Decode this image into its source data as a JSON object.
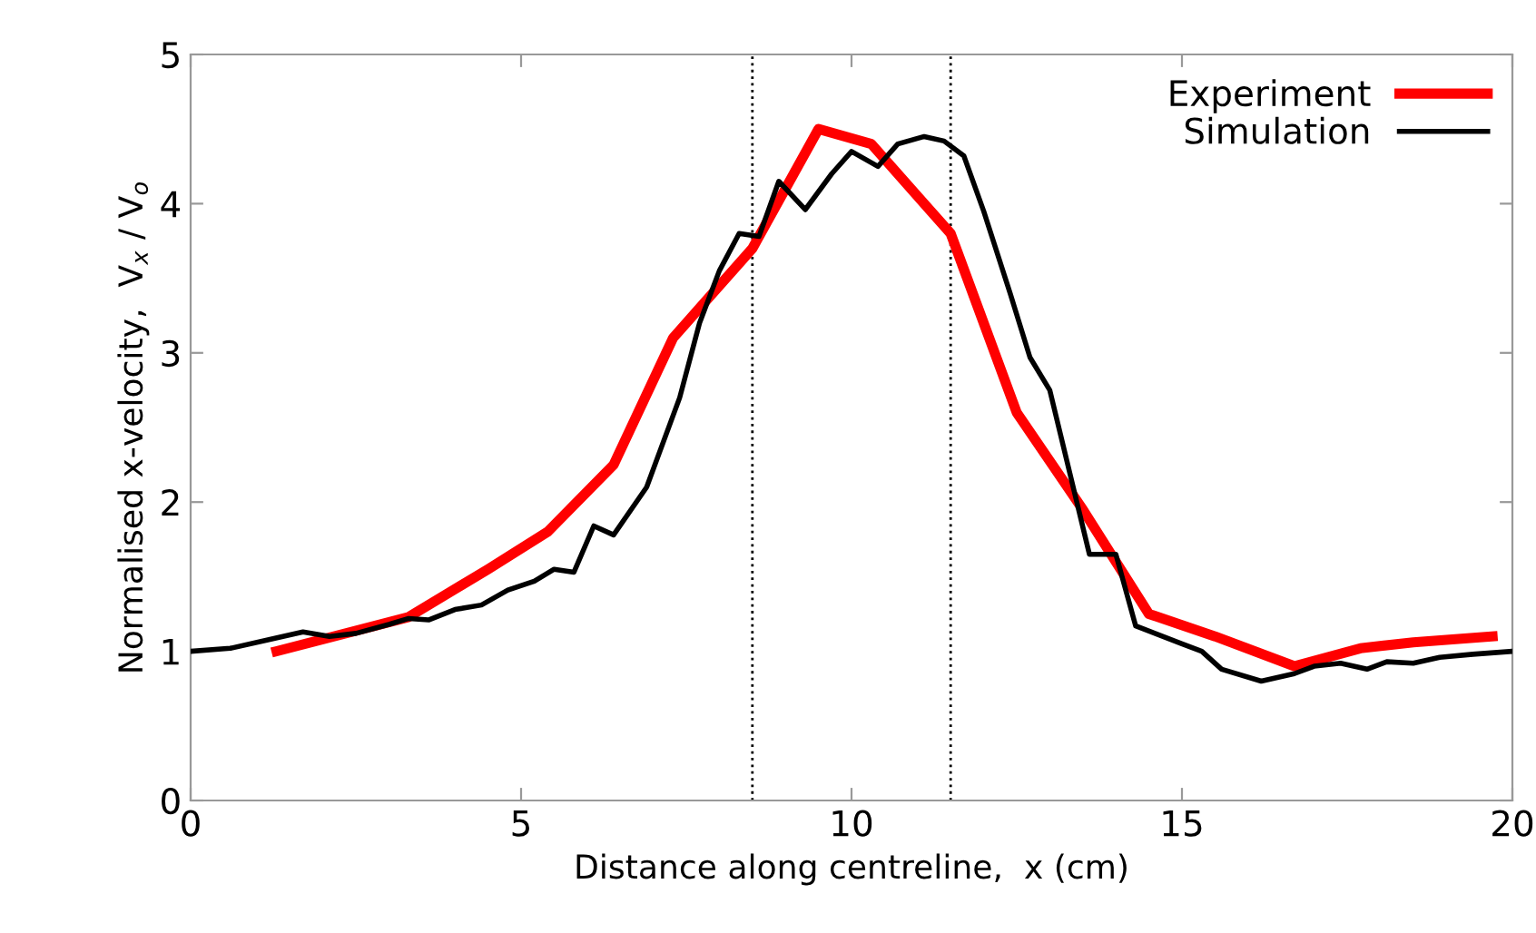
{
  "chart_data": {
    "type": "line",
    "xlabel": "Distance along centreline,  x (cm)",
    "ylabel": "Normalised x-velocity,  V$_{x}$ / V$_{o}$",
    "xlim": [
      0,
      20
    ],
    "xticks": [
      0,
      5,
      10,
      15,
      20
    ],
    "ylim": [
      0,
      5
    ],
    "yticks": [
      0,
      1,
      2,
      3,
      4,
      5
    ],
    "grid": false,
    "legend": "top right",
    "ref_lines": [
      {
        "axis": "x",
        "value": 8.5,
        "color": "#000000",
        "line_style": "dotted"
      },
      {
        "axis": "x",
        "value": 11.5,
        "color": "#000000",
        "line_style": "dotted"
      }
    ],
    "series": [
      {
        "name": "Experiment",
        "color": "#ff0000",
        "x": [
          1.3,
          3.3,
          4.5,
          5.4,
          6.4,
          7.3,
          8.5,
          9.5,
          10.3,
          11.5,
          12.5,
          13.5,
          14.5,
          15.5,
          16.7,
          17.7,
          18.5,
          19.7
        ],
        "values": [
          1.0,
          1.23,
          1.55,
          1.8,
          2.25,
          3.1,
          3.7,
          4.5,
          4.4,
          3.8,
          2.6,
          1.95,
          1.25,
          1.1,
          0.9,
          1.02,
          1.06,
          1.1
        ]
      },
      {
        "name": "Simulation",
        "color": "#000000",
        "x": [
          0,
          0.6,
          1.2,
          1.7,
          2.1,
          2.5,
          3.0,
          3.3,
          3.6,
          4.0,
          4.4,
          4.8,
          5.2,
          5.5,
          5.8,
          6.1,
          6.4,
          6.9,
          7.4,
          7.7,
          8.0,
          8.3,
          8.6,
          8.9,
          9.3,
          9.7,
          10.0,
          10.4,
          10.7,
          11.1,
          11.4,
          11.7,
          12.0,
          12.4,
          12.7,
          13.0,
          13.3,
          13.6,
          14.0,
          14.3,
          15.0,
          15.3,
          15.6,
          16.2,
          16.7,
          17.0,
          17.4,
          17.8,
          18.1,
          18.5,
          18.9,
          19.4,
          20.0
        ],
        "values": [
          1.0,
          1.02,
          1.08,
          1.13,
          1.1,
          1.12,
          1.18,
          1.22,
          1.21,
          1.28,
          1.31,
          1.41,
          1.47,
          1.55,
          1.53,
          1.84,
          1.78,
          2.1,
          2.7,
          3.2,
          3.55,
          3.8,
          3.78,
          4.15,
          3.96,
          4.2,
          4.35,
          4.25,
          4.4,
          4.45,
          4.42,
          4.32,
          3.95,
          3.4,
          2.97,
          2.75,
          2.2,
          1.65,
          1.65,
          1.17,
          1.05,
          1.0,
          0.88,
          0.8,
          0.85,
          0.9,
          0.92,
          0.88,
          0.93,
          0.92,
          0.96,
          0.98,
          1.0
        ]
      }
    ]
  }
}
